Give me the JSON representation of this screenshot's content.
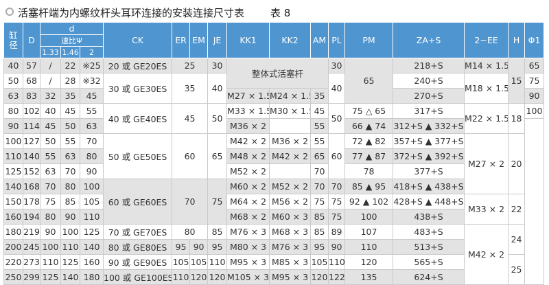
{
  "header": {
    "title": "活塞杆端为内螺纹杆头耳环连接的安装连接尺寸表",
    "label": "表 8"
  },
  "table": {
    "head": {
      "bore": "缸径",
      "D": "D",
      "d": "d",
      "ratio": "速比Ψ",
      "ratios": [
        "1.33",
        "1.46",
        "2"
      ],
      "cols": [
        "CK",
        "ER",
        "EM",
        "JE",
        "KK1",
        "KK2",
        "AM",
        "PL",
        "PM",
        "ZA+S",
        "2−EE",
        "H",
        "Φ1"
      ]
    },
    "rows": [
      [
        "40",
        "57",
        "/",
        "22",
        "※25",
        "20 或 GE20ES",
        "25",
        "30",
        "整体式活塞杆",
        "30",
        "65",
        "218+S",
        "M14 × 1.5",
        "15",
        "65"
      ],
      [
        "50",
        "68",
        "/",
        "28",
        "※32",
        "30 或 GE30ES",
        "35",
        "40",
        "40",
        "240+S",
        "M18 × 1.5",
        "75"
      ],
      [
        "63",
        "83",
        "32",
        "35",
        "45",
        "M27 × 1.5",
        "M24 × 1.5",
        "35",
        "270+S",
        "90"
      ],
      [
        "80",
        "102",
        "40",
        "45",
        "55",
        "40 或 GE40ES",
        "45",
        "50",
        "M33 × 1.5",
        "M30 × 1.5",
        "45",
        "50",
        "75 △ 65",
        "317+S",
        "M22 × 1.5",
        "18",
        "100"
      ],
      [
        "90",
        "114",
        "45",
        "50",
        "63",
        "M36 × 2",
        "55",
        "66 ▲ 74",
        "312+S ▲ 332+S"
      ],
      [
        "100",
        "127",
        "50",
        "55",
        "70",
        "50 或 GE50ES",
        "60",
        "65",
        "M42 × 2",
        "M36 × 2",
        "55",
        "60",
        "72 ▲ 82",
        "357+S ▲ 377+S",
        "M27 × 2",
        "20"
      ],
      [
        "110",
        "140",
        "55",
        "63",
        "80",
        "M48 × 2",
        "M42 × 2",
        "65",
        "77 ▲ 87",
        "372+S ▲ 392+S"
      ],
      [
        "125",
        "152",
        "63",
        "70",
        "90",
        "M52 × 2",
        "70",
        "78",
        "377+S"
      ],
      [
        "140",
        "168",
        "70",
        "80",
        "100",
        "60 或 GE60ES",
        "70",
        "75",
        "M60 × 2",
        "M52 × 2",
        "70",
        "70",
        "85 ▲ 95",
        "418+S ▲ 438+S"
      ],
      [
        "150",
        "178",
        "75",
        "85",
        "105",
        "M64 × 2",
        "M56 × 2",
        "75",
        "75",
        "92 ▲ 102",
        "428+S ▲ 448+S",
        "M33 × 2",
        "22"
      ],
      [
        "160",
        "194",
        "80",
        "90",
        "110",
        "M68 × 2",
        "M60 × 3",
        "85",
        "75",
        "100",
        "438+S"
      ],
      [
        "180",
        "219",
        "90",
        "100",
        "125",
        "70 或 GE70ES",
        "80",
        "85",
        "M76 × 3",
        "M68 × 3",
        "85",
        "89",
        "107",
        "483+S",
        "M42 × 2",
        "24"
      ],
      [
        "200",
        "245",
        "100",
        "110",
        "140",
        "80 或 GE80ES",
        "95",
        "90",
        "95",
        "M80 × 3",
        "M76 × 3",
        "95",
        "90",
        "110",
        "513+S"
      ],
      [
        "220",
        "273",
        "110",
        "125",
        "160",
        "90 或 GE90ES",
        "105",
        "105",
        "110",
        "M95 × 3",
        "M85 × 3",
        "105",
        "110",
        "120",
        "565+S",
        "25"
      ],
      [
        "250",
        "299",
        "125",
        "140",
        "180",
        "100 或 GE100ES",
        "110",
        "120",
        "120",
        "M105 × 3",
        "M95 × 3",
        "120",
        "122",
        "135",
        "624+S"
      ]
    ]
  }
}
